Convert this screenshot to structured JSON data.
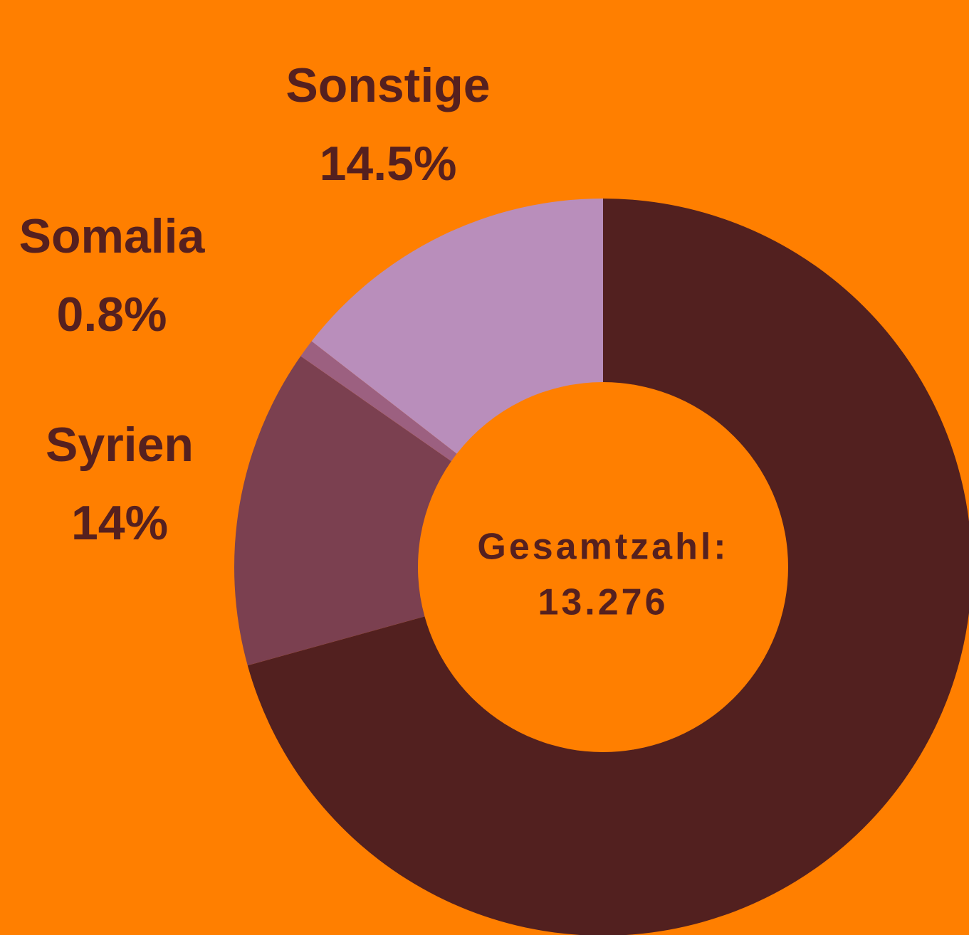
{
  "chart_data": {
    "type": "donut",
    "categories": [
      null,
      "Syrien",
      "Somalia",
      "Sonstige"
    ],
    "values": [
      70.7,
      14,
      0.8,
      14.5
    ],
    "value_labels": [
      null,
      "14%",
      "0.8%",
      "14.5%"
    ],
    "colors": [
      "#52201f",
      "#7b4050",
      "#9c6080",
      "#b98ebb"
    ],
    "center_title": "Gesamtzahl:",
    "total": {
      "value": 13276,
      "label": "13.276"
    }
  }
}
